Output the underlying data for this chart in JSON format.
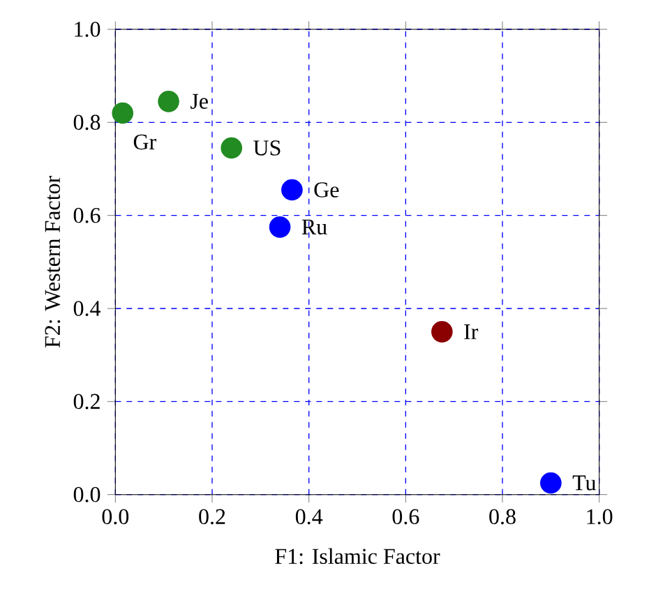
{
  "chart_data": {
    "type": "scatter",
    "xlabel": "F1: Islamic Factor",
    "ylabel": "F2: Western Factor",
    "x": [
      0.015,
      0.11,
      0.24,
      0.365,
      0.34,
      0.675,
      0.9
    ],
    "values": [
      0.82,
      0.845,
      0.745,
      0.655,
      0.575,
      0.35,
      0.025
    ],
    "colors": [
      "#228b22",
      "#228b22",
      "#228b22",
      "#0000ff",
      "#0000ff",
      "#8b0000",
      "#0000ff"
    ],
    "marker": "circle",
    "grid": true,
    "xlim": [
      0,
      1
    ],
    "ylim": [
      0,
      1
    ],
    "xticks": [
      {
        "value": 0,
        "label": "0.0"
      },
      {
        "value": 0.2,
        "label": "0.2"
      },
      {
        "value": 0.4,
        "label": "0.4"
      },
      {
        "value": 0.6,
        "label": "0.6"
      },
      {
        "value": 0.8,
        "label": "0.8"
      },
      {
        "value": 1,
        "label": "1.0"
      }
    ],
    "yticks": [
      {
        "value": 0,
        "label": "0.0"
      },
      {
        "value": 0.2,
        "label": "0.2"
      },
      {
        "value": 0.4,
        "label": "0.4"
      },
      {
        "value": 0.6,
        "label": "0.6"
      },
      {
        "value": 0.8,
        "label": "0.8"
      },
      {
        "value": 1,
        "label": "1.0"
      }
    ],
    "annotations": [
      {
        "text": "Gr",
        "x": 0.015,
        "y": 0.82
      },
      {
        "text": "Je",
        "x": 0.11,
        "y": 0.845
      },
      {
        "text": "US",
        "x": 0.24,
        "y": 0.745
      },
      {
        "text": "Ge",
        "x": 0.365,
        "y": 0.655
      },
      {
        "text": "Ru",
        "x": 0.34,
        "y": 0.575
      },
      {
        "text": "Ir",
        "x": 0.675,
        "y": 0.35
      },
      {
        "text": "Tu",
        "x": 0.9,
        "y": 0.025
      }
    ]
  }
}
